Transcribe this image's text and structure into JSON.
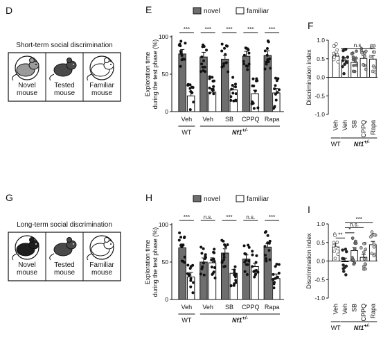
{
  "colors": {
    "novel": "#6e6e6e",
    "familiar": "#ffffff",
    "axis": "#111111"
  },
  "panels": {
    "D": {
      "letter": "D",
      "title": "Short-term social discrimination",
      "mice": [
        {
          "icon": "novel-mouse-icon",
          "label1": "Novel",
          "label2": "mouse",
          "shade": "#9a9a9a",
          "caged": true
        },
        {
          "icon": "tested-mouse-icon",
          "label1": "Tested",
          "label2": "mouse",
          "shade": "#4a4a4a",
          "caged": false
        },
        {
          "icon": "familiar-mouse-icon",
          "label1": "Familiar",
          "label2": "mouse",
          "shade": "#ffffff",
          "caged": true
        }
      ]
    },
    "G": {
      "letter": "G",
      "title": "Long-term social discrimination",
      "mice": [
        {
          "icon": "novel-mouse-icon",
          "label1": "Novel",
          "label2": "mouse",
          "shade": "#1e1e1e",
          "caged": true
        },
        {
          "icon": "tested-mouse-icon",
          "label1": "Tested",
          "label2": "mouse",
          "shade": "#4a4a4a",
          "caged": false
        },
        {
          "icon": "familiar-mouse-icon",
          "label1": "Familiar",
          "label2": "mouse",
          "shade": "#ffffff",
          "caged": true
        }
      ]
    }
  },
  "chart_data": [
    {
      "panel": "E",
      "type": "bar",
      "legend": [
        "novel",
        "familiar"
      ],
      "ylabel": [
        "Exploration time",
        "during the test phase (%)"
      ],
      "ylim": [
        0,
        100
      ],
      "yticks": [
        "0",
        "50",
        "100"
      ],
      "categories": [
        "Veh",
        "Veh",
        "SB",
        "CPPQ",
        "Rapa"
      ],
      "series": [
        {
          "name": "novel",
          "values": [
            77,
            73,
            70,
            74,
            75
          ]
        },
        {
          "name": "familiar",
          "values": [
            21,
            26,
            29,
            24,
            25
          ]
        }
      ],
      "significance": [
        "***",
        "***",
        "***",
        "***",
        "***"
      ],
      "groups": [
        {
          "label": "WT",
          "italic": false
        },
        {
          "label": "Nf1",
          "sup": "+/-",
          "italic": true
        }
      ]
    },
    {
      "panel": "F",
      "type": "bar",
      "ylabel": [
        "Discrimination index"
      ],
      "ylim": [
        -1.0,
        1.0
      ],
      "yticks": [
        "-1.0",
        "-0.5",
        "0.0",
        "0.5",
        "1.0"
      ],
      "categories": [
        "Veh",
        "Veh",
        "SB",
        "CPPQ",
        "Rapa"
      ],
      "values": [
        0.57,
        0.46,
        0.4,
        0.51,
        0.49
      ],
      "significance": [
        {
          "label": "n.s."
        }
      ],
      "groups": [
        {
          "label": "WT",
          "italic": false
        },
        {
          "label": "Nf1",
          "sup": "+/-",
          "italic": true
        }
      ]
    },
    {
      "panel": "H",
      "type": "bar",
      "legend": [
        "novel",
        "familiar"
      ],
      "ylabel": [
        "Exploration time",
        "during the test phase (%)"
      ],
      "ylim": [
        0,
        100
      ],
      "yticks": [
        "0",
        "50",
        "100"
      ],
      "categories": [
        "Veh",
        "Veh",
        "SB",
        "CPPQ",
        "Rapa"
      ],
      "series": [
        {
          "name": "novel",
          "values": [
            69,
            50,
            62,
            54,
            70
          ]
        },
        {
          "name": "familiar",
          "values": [
            30,
            49,
            35,
            44,
            28
          ]
        }
      ],
      "significance": [
        "***",
        "n.s.",
        "***",
        "n.s.",
        "***"
      ],
      "groups": [
        {
          "label": "WT",
          "italic": false
        },
        {
          "label": "Nf1",
          "sup": "+/-",
          "italic": true
        }
      ]
    },
    {
      "panel": "I",
      "type": "bar",
      "ylabel": [
        "Discrimination index"
      ],
      "ylim": [
        -1.0,
        1.0
      ],
      "yticks": [
        "-1.0",
        "-0.5",
        "0.0",
        "0.5",
        "1.0"
      ],
      "categories": [
        "Veh",
        "Veh",
        "SB",
        "CPPQ",
        "Rapa"
      ],
      "values": [
        0.38,
        0.0,
        0.28,
        0.1,
        0.44
      ],
      "significance": [
        {
          "label": "**",
          "from": 0,
          "to": 1
        },
        {
          "label": "*",
          "from": 1,
          "to": 2
        },
        {
          "label": "n.s.",
          "from": 1,
          "to": 3
        },
        {
          "label": "***",
          "from": 1,
          "to": 4
        }
      ],
      "groups": [
        {
          "label": "WT",
          "italic": false
        },
        {
          "label": "Nf1",
          "sup": "+/-",
          "italic": true
        }
      ]
    }
  ]
}
